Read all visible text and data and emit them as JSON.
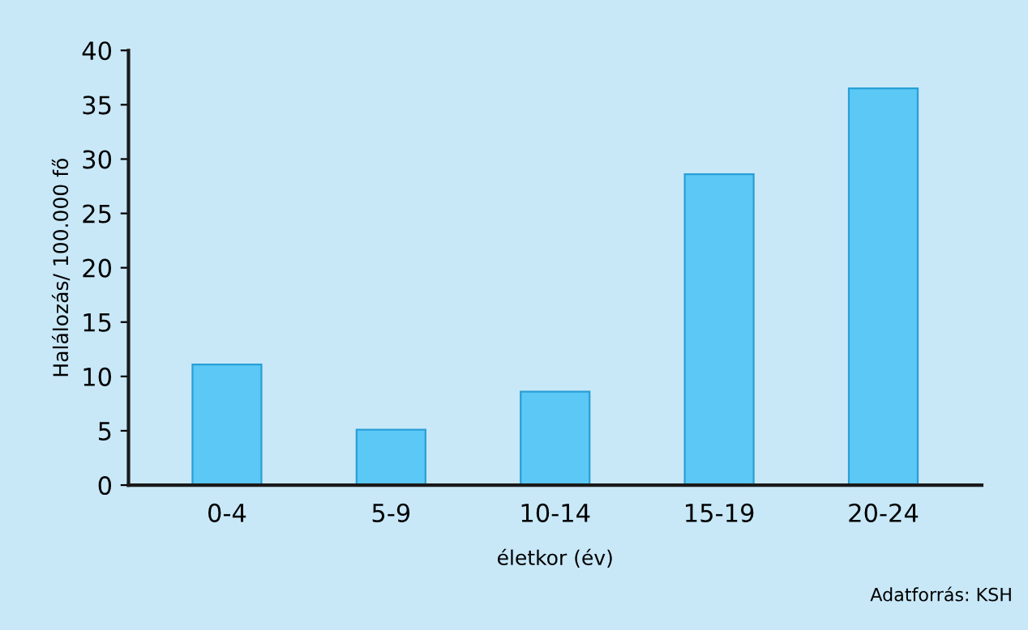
{
  "chart_data": {
    "type": "bar",
    "xlabel": "életkor (év)",
    "ylabel": "Halálozás/ 100.000 fő",
    "categories": [
      "0-4",
      "5-9",
      "10-14",
      "15-19",
      "20-24"
    ],
    "values": [
      11.1,
      5.1,
      8.6,
      28.6,
      36.5
    ],
    "color": "#5bc8f5",
    "ylim": [
      0,
      40
    ],
    "yticks": [
      0,
      5,
      10,
      15,
      20,
      25,
      30,
      35,
      40
    ],
    "grid": false,
    "annotations": [
      "Adatforrás: KSH"
    ]
  }
}
